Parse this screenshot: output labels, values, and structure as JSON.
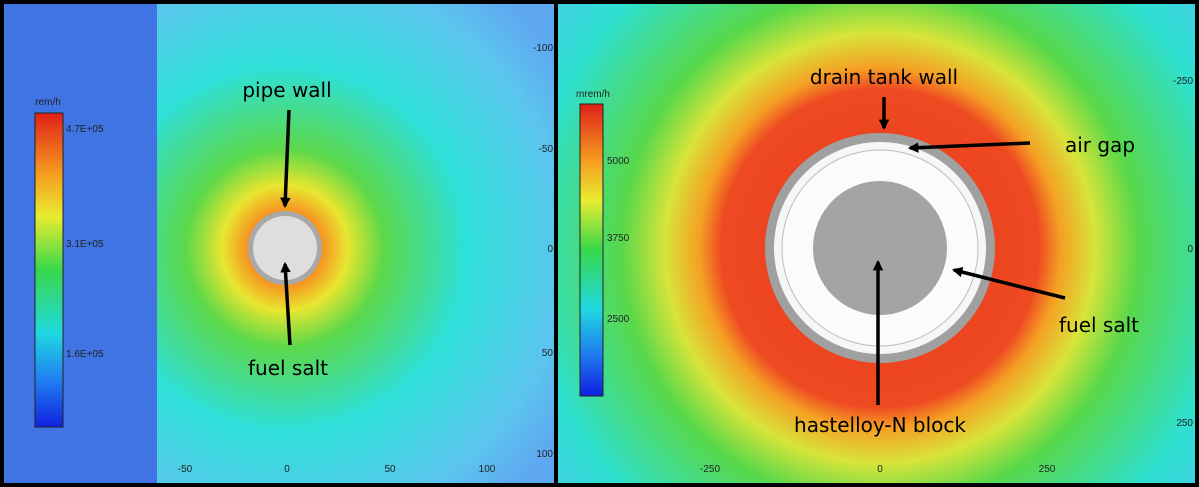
{
  "panels": [
    {
      "colorbar": {
        "unit": "rem/h",
        "labels": [
          "4.7E+05",
          "3.1E+05",
          "1.6E+05"
        ]
      },
      "x_ticks": [
        "-50",
        "0",
        "50",
        "100"
      ],
      "annotations": [
        "pipe wall",
        "fuel salt"
      ]
    },
    {
      "colorbar": {
        "unit": "mrem/h",
        "labels": [
          "5000",
          "3750",
          "2500"
        ]
      },
      "x_ticks": [
        "-250",
        "0",
        "250"
      ],
      "y_ticks_left": [
        "-100",
        "-50",
        "0",
        "50",
        "100"
      ],
      "y_ticks_right": [
        "-250",
        "0",
        "250"
      ],
      "annotations": [
        "drain tank wall",
        "air gap",
        "fuel salt",
        "hastelloy-N block"
      ]
    }
  ]
}
